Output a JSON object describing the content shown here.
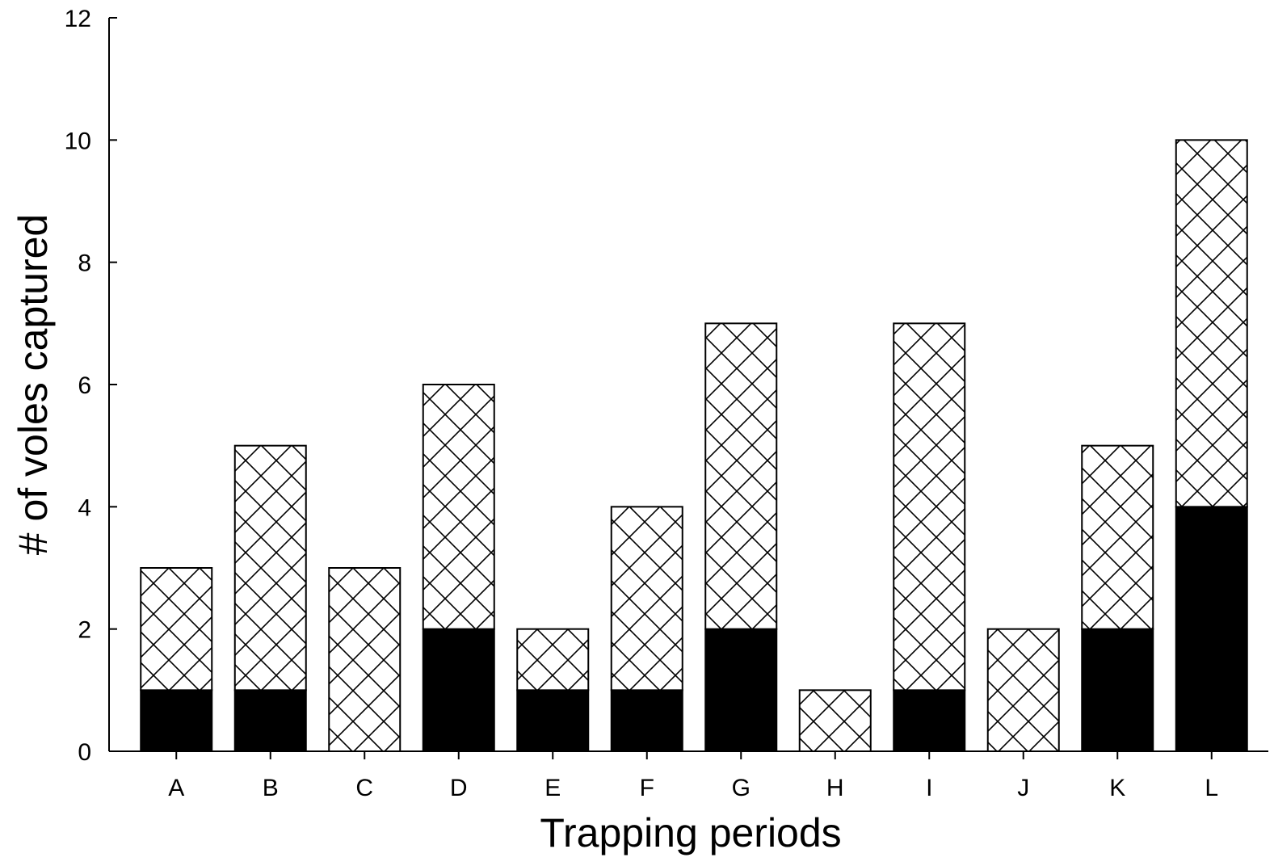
{
  "chart_data": {
    "type": "bar",
    "stacked": true,
    "title": "",
    "xlabel": "Trapping periods",
    "ylabel": "# of voles captured",
    "categories": [
      "A",
      "B",
      "C",
      "D",
      "E",
      "F",
      "G",
      "H",
      "I",
      "J",
      "K",
      "L"
    ],
    "series": [
      {
        "values": [
          1,
          1,
          0,
          2,
          1,
          1,
          2,
          0,
          1,
          0,
          2,
          4
        ],
        "fill": "solid",
        "color": "#000000"
      },
      {
        "values": [
          2,
          4,
          3,
          4,
          1,
          3,
          5,
          1,
          6,
          2,
          3,
          6
        ],
        "fill": "crosshatch",
        "color": "#000000"
      }
    ],
    "ylim": [
      0,
      12
    ],
    "yticks": [
      "0",
      "2",
      "4",
      "6",
      "8",
      "10",
      "12"
    ],
    "grid": false,
    "legend": "none"
  }
}
